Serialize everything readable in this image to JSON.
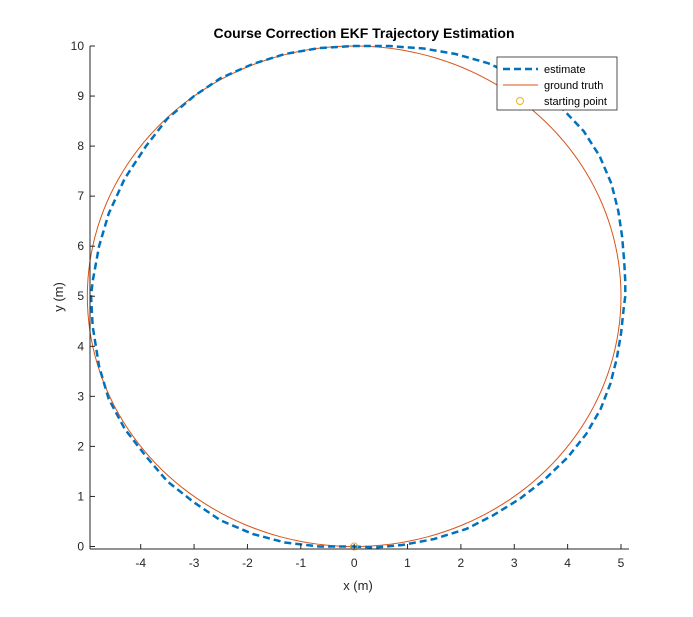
{
  "chart_data": {
    "type": "line",
    "title": "Course Correction EKF Trajectory Estimation",
    "xlabel": "x (m)",
    "ylabel": "y (m)",
    "xlim": [
      -4.95,
      5.15
    ],
    "ylim": [
      -0.05,
      10
    ],
    "xticks": [
      -4,
      -3,
      -2,
      -1,
      0,
      1,
      2,
      3,
      4,
      5
    ],
    "yticks": [
      0,
      1,
      2,
      3,
      4,
      5,
      6,
      7,
      8,
      9,
      10
    ],
    "grid": false,
    "legend_position": "top-right",
    "series": [
      {
        "name": "estimate",
        "style": "dashed",
        "color": "#0072BD",
        "x": [
          0,
          0.4,
          0.9,
          1.5,
          2.1,
          2.6,
          3.1,
          3.55,
          4.0,
          4.35,
          4.62,
          4.8,
          4.92,
          5.0,
          5.05,
          5.08,
          5.08,
          5.06,
          5.02,
          4.95,
          4.82,
          4.6,
          4.3,
          3.9,
          3.5,
          3.0,
          2.5,
          1.9,
          1.3,
          0.65,
          0,
          -0.65,
          -1.3,
          -1.9,
          -2.5,
          -3.0,
          -3.5,
          -3.9,
          -4.3,
          -4.6,
          -4.78,
          -4.9,
          -4.93,
          -4.9,
          -4.78,
          -4.6,
          -4.3,
          -3.9,
          -3.5,
          -3.0,
          -2.5,
          -1.9,
          -1.3,
          -0.65,
          0
        ],
        "y": [
          0,
          -0.02,
          0.03,
          0.15,
          0.35,
          0.62,
          0.95,
          1.32,
          1.78,
          2.25,
          2.75,
          3.25,
          3.75,
          4.25,
          4.75,
          5.0,
          5.3,
          5.7,
          6.2,
          6.7,
          7.25,
          7.8,
          8.3,
          8.75,
          9.1,
          9.42,
          9.66,
          9.84,
          9.95,
          10.0,
          10.0,
          9.96,
          9.84,
          9.64,
          9.36,
          9.0,
          8.55,
          8.0,
          7.35,
          6.65,
          6.0,
          5.3,
          5.0,
          4.4,
          3.6,
          2.95,
          2.35,
          1.8,
          1.3,
          0.88,
          0.52,
          0.25,
          0.08,
          0.0,
          0
        ]
      },
      {
        "name": "ground truth",
        "style": "solid",
        "color": "#D95319",
        "shape": "circle",
        "center": [
          0,
          5
        ],
        "radius": 5
      },
      {
        "name": "starting point",
        "style": "marker",
        "color": "#EDB120",
        "x": [
          0
        ],
        "y": [
          0
        ]
      }
    ]
  }
}
